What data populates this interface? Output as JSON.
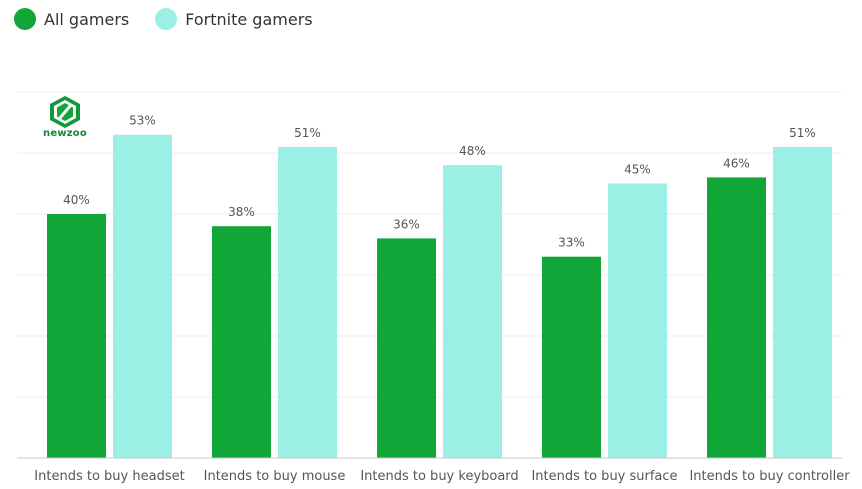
{
  "legend": {
    "series0": {
      "label": "All gamers",
      "color": "#11a637"
    },
    "series1": {
      "label": "Fortnite gamers",
      "color": "#9cefe5"
    }
  },
  "logo": {
    "text": "newzoo"
  },
  "chart_data": {
    "type": "bar",
    "categories": [
      "Intends to buy headset",
      "Intends to buy mouse",
      "Intends to buy keyboard",
      "Intends to buy surface",
      "Intends to buy controller"
    ],
    "series": [
      {
        "name": "All gamers",
        "values": [
          40,
          38,
          36,
          33,
          46
        ],
        "labels": [
          "40%",
          "38%",
          "36%",
          "33%",
          "46%"
        ],
        "color": "#11a637"
      },
      {
        "name": "Fortnite gamers",
        "values": [
          53,
          51,
          48,
          45,
          51
        ],
        "labels": [
          "53%",
          "51%",
          "48%",
          "45%",
          "51%"
        ],
        "color": "#9cefe5"
      }
    ],
    "ylim": [
      0,
      60
    ],
    "grid": true,
    "legend_position": "top-left"
  }
}
